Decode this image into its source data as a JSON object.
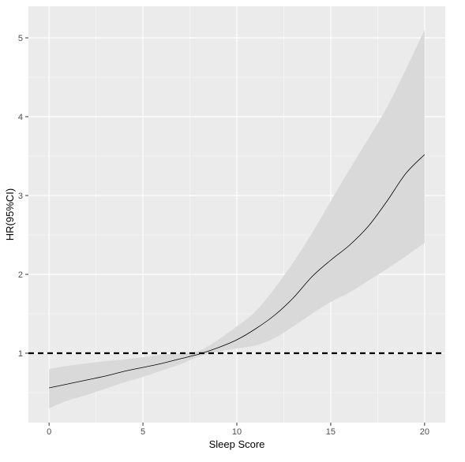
{
  "chart_data": {
    "type": "line",
    "title": "",
    "xlabel": "Sleep Score",
    "ylabel": "HR(95%CI)",
    "xlim": [
      -1.1,
      21.1
    ],
    "ylim": [
      0.12,
      5.4
    ],
    "x_ticks": [
      0,
      5,
      10,
      15,
      20
    ],
    "y_ticks": [
      1,
      2,
      3,
      4,
      5
    ],
    "grid": true,
    "legend": "none",
    "reference_line": {
      "y": 1,
      "style": "dashed",
      "color": "#000000"
    },
    "colors": {
      "panel_background": "#ebebeb",
      "grid_major": "#ffffff",
      "ribbon": "#d9d9d9",
      "line": "#000000"
    },
    "series": [
      {
        "x": [
          0,
          1,
          2,
          3,
          4,
          5,
          6,
          7,
          8,
          9,
          10,
          11,
          12,
          13,
          14,
          15,
          16,
          17,
          18,
          19,
          20
        ],
        "y": [
          0.56,
          0.61,
          0.66,
          0.71,
          0.77,
          0.82,
          0.87,
          0.93,
          0.99,
          1.07,
          1.17,
          1.31,
          1.48,
          1.7,
          1.97,
          2.18,
          2.37,
          2.61,
          2.93,
          3.28,
          3.52
        ],
        "lower": [
          0.3,
          0.4,
          0.47,
          0.55,
          0.63,
          0.7,
          0.78,
          0.86,
          0.96,
          1.02,
          1.06,
          1.1,
          1.19,
          1.34,
          1.5,
          1.65,
          1.77,
          1.92,
          2.07,
          2.23,
          2.4
        ],
        "upper": [
          0.8,
          0.84,
          0.87,
          0.9,
          0.92,
          0.95,
          0.98,
          1.0,
          1.03,
          1.17,
          1.34,
          1.53,
          1.82,
          2.15,
          2.52,
          2.93,
          3.33,
          3.72,
          4.12,
          4.6,
          5.1
        ]
      }
    ]
  }
}
